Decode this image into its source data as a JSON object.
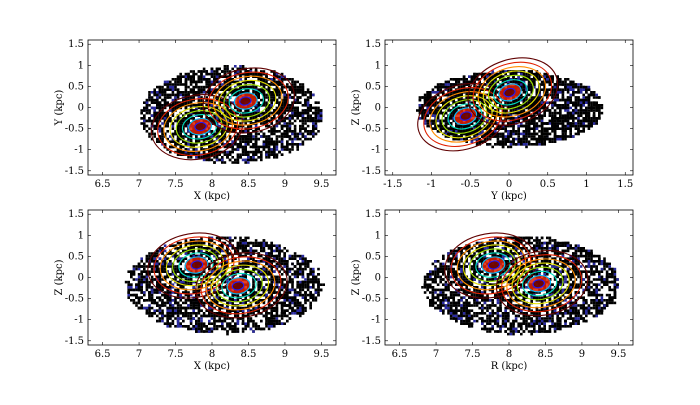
{
  "figure": {
    "panel_count": 4,
    "description_note": "Four 2D density scatter panels with overlaid contour lines"
  },
  "chart_data": [
    {
      "type": "heatmap",
      "panel": "top-left",
      "xlabel": "X (kpc)",
      "ylabel": "Y (kpc)",
      "xlim": [
        6.3,
        9.7
      ],
      "ylim": [
        -1.6,
        1.6
      ],
      "xticks": [
        "6.5",
        "7",
        "7.5",
        "8",
        "8.5",
        "9",
        "9.5"
      ],
      "yticks": [
        "-1.5",
        "-1",
        "-0.5",
        "0",
        "0.5",
        "1",
        "1.5"
      ],
      "xtick_values": [
        6.5,
        7,
        7.5,
        8,
        8.5,
        9,
        9.5
      ],
      "ytick_values": [
        -1.5,
        -1,
        -0.5,
        0,
        0.5,
        1,
        1.5
      ],
      "scatter_extent": {
        "xmin": 7.0,
        "xmax": 9.5,
        "ymin": -1.3,
        "ymax": 1.0
      },
      "density_peaks": [
        {
          "x": 7.85,
          "y": -0.45,
          "level": "high"
        },
        {
          "x": 8.45,
          "y": 0.15,
          "level": "high"
        }
      ],
      "contour_levels": 8,
      "colormap": [
        "#1a1aff",
        "#00bfff",
        "#00e0c0",
        "#9be000",
        "#e0e000",
        "#ff8c00",
        "#e02000",
        "#600000"
      ]
    },
    {
      "type": "heatmap",
      "panel": "top-right",
      "xlabel": "Y (kpc)",
      "ylabel": "Z (kpc)",
      "xlim": [
        -1.6,
        1.6
      ],
      "ylim": [
        -1.6,
        1.6
      ],
      "xticks": [
        "-1.5",
        "-1",
        "-0.5",
        "0",
        "0.5",
        "1",
        "1.5"
      ],
      "yticks": [
        "-1.5",
        "-1",
        "-0.5",
        "0",
        "0.5",
        "1",
        "1.5"
      ],
      "xtick_values": [
        -1.5,
        -1,
        -0.5,
        0,
        0.5,
        1,
        1.5
      ],
      "ytick_values": [
        -1.5,
        -1,
        -0.5,
        0,
        0.5,
        1,
        1.5
      ],
      "scatter_extent": {
        "xmin": -1.2,
        "xmax": 1.2,
        "ymin": -0.9,
        "ymax": 0.9
      },
      "density_peaks": [
        {
          "x": -0.55,
          "y": -0.2,
          "level": "high"
        },
        {
          "x": 0.0,
          "y": 0.35,
          "level": "high"
        }
      ],
      "contour_levels": 8,
      "colormap": [
        "#1a1aff",
        "#00bfff",
        "#00e0c0",
        "#9be000",
        "#e0e000",
        "#ff8c00",
        "#e02000",
        "#600000"
      ]
    },
    {
      "type": "heatmap",
      "panel": "bottom-left",
      "xlabel": "X (kpc)",
      "ylabel": "Z (kpc)",
      "xlim": [
        6.3,
        9.7
      ],
      "ylim": [
        -1.6,
        1.6
      ],
      "xticks": [
        "6.5",
        "7",
        "7.5",
        "8",
        "8.5",
        "9",
        "9.5"
      ],
      "yticks": [
        "-1.5",
        "-1",
        "-0.5",
        "0",
        "0.5",
        "1",
        "1.5"
      ],
      "xtick_values": [
        6.5,
        7,
        7.5,
        8,
        8.5,
        9,
        9.5
      ],
      "ytick_values": [
        -1.5,
        -1,
        -0.5,
        0,
        0.5,
        1,
        1.5
      ],
      "scatter_extent": {
        "xmin": 6.8,
        "xmax": 9.5,
        "ymin": -1.3,
        "ymax": 1.0
      },
      "density_peaks": [
        {
          "x": 7.8,
          "y": 0.3,
          "level": "high"
        },
        {
          "x": 8.35,
          "y": -0.2,
          "level": "high"
        }
      ],
      "contour_levels": 8,
      "colormap": [
        "#1a1aff",
        "#00bfff",
        "#00e0c0",
        "#9be000",
        "#e0e000",
        "#ff8c00",
        "#e02000",
        "#600000"
      ]
    },
    {
      "type": "heatmap",
      "panel": "bottom-right",
      "xlabel": "R (kpc)",
      "ylabel": "Z (kpc)",
      "xlim": [
        6.3,
        9.7
      ],
      "ylim": [
        -1.6,
        1.6
      ],
      "xticks": [
        "6.5",
        "7",
        "7.5",
        "8",
        "8.5",
        "9",
        "9.5"
      ],
      "yticks": [
        "-1.5",
        "-1",
        "-0.5",
        "0",
        "0.5",
        "1",
        "1.5"
      ],
      "xtick_values": [
        6.5,
        7,
        7.5,
        8,
        8.5,
        9,
        9.5
      ],
      "ytick_values": [
        -1.5,
        -1,
        -0.5,
        0,
        0.5,
        1,
        1.5
      ],
      "scatter_extent": {
        "xmin": 6.8,
        "xmax": 9.5,
        "ymin": -1.3,
        "ymax": 1.0
      },
      "density_peaks": [
        {
          "x": 7.8,
          "y": 0.3,
          "level": "high"
        },
        {
          "x": 8.4,
          "y": -0.15,
          "level": "high"
        }
      ],
      "contour_levels": 8,
      "colormap": [
        "#1a1aff",
        "#00bfff",
        "#00e0c0",
        "#9be000",
        "#e0e000",
        "#ff8c00",
        "#e02000",
        "#600000"
      ]
    }
  ]
}
